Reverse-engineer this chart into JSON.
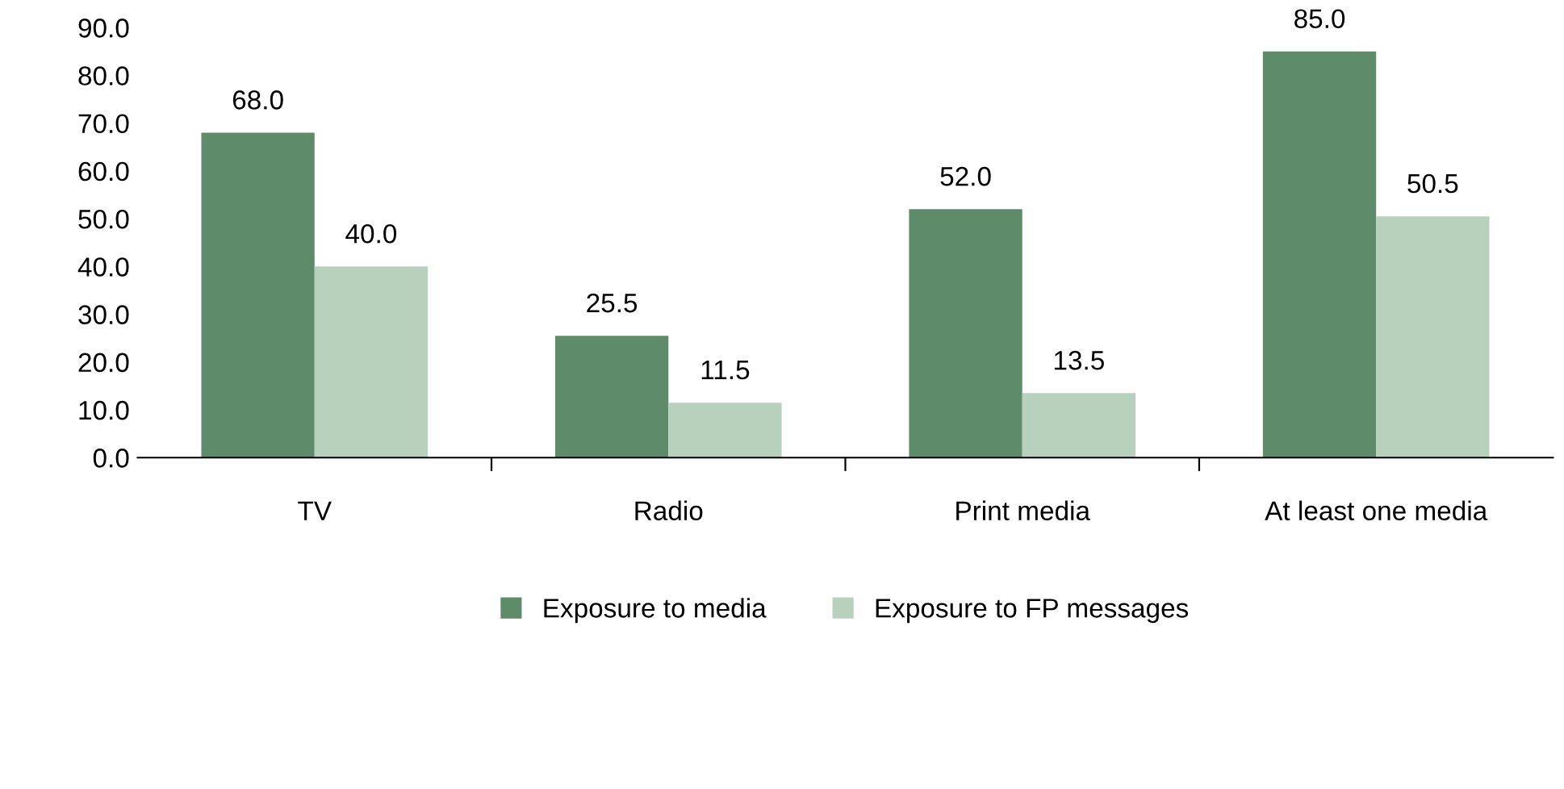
{
  "chart_data": {
    "type": "bar",
    "categories": [
      "TV",
      "Radio",
      "Print media",
      "At least one media"
    ],
    "series": [
      {
        "name": "Exposure to media",
        "color": "#5e8c6a",
        "values": [
          68.0,
          25.5,
          52.0,
          85.0
        ],
        "value_labels": [
          "68.0",
          "25.5",
          "52.0",
          "85.0"
        ]
      },
      {
        "name": "Exposure to FP messages",
        "color": "#b8d1bd",
        "values": [
          40.0,
          11.5,
          13.5,
          50.5
        ],
        "value_labels": [
          "40.0",
          "11.5",
          "13.5",
          "50.5"
        ]
      }
    ],
    "ylim": [
      0,
      90
    ],
    "yticks": [
      {
        "value": 0,
        "label": "0.0"
      },
      {
        "value": 10,
        "label": "10.0"
      },
      {
        "value": 20,
        "label": "20.0"
      },
      {
        "value": 30,
        "label": "30.0"
      },
      {
        "value": 40,
        "label": "40.0"
      },
      {
        "value": 50,
        "label": "50.0"
      },
      {
        "value": 60,
        "label": "60.0"
      },
      {
        "value": 70,
        "label": "70.0"
      },
      {
        "value": 80,
        "label": "80.0"
      },
      {
        "value": 90,
        "label": "90.0"
      }
    ],
    "grid": false,
    "legend": "bottom"
  }
}
